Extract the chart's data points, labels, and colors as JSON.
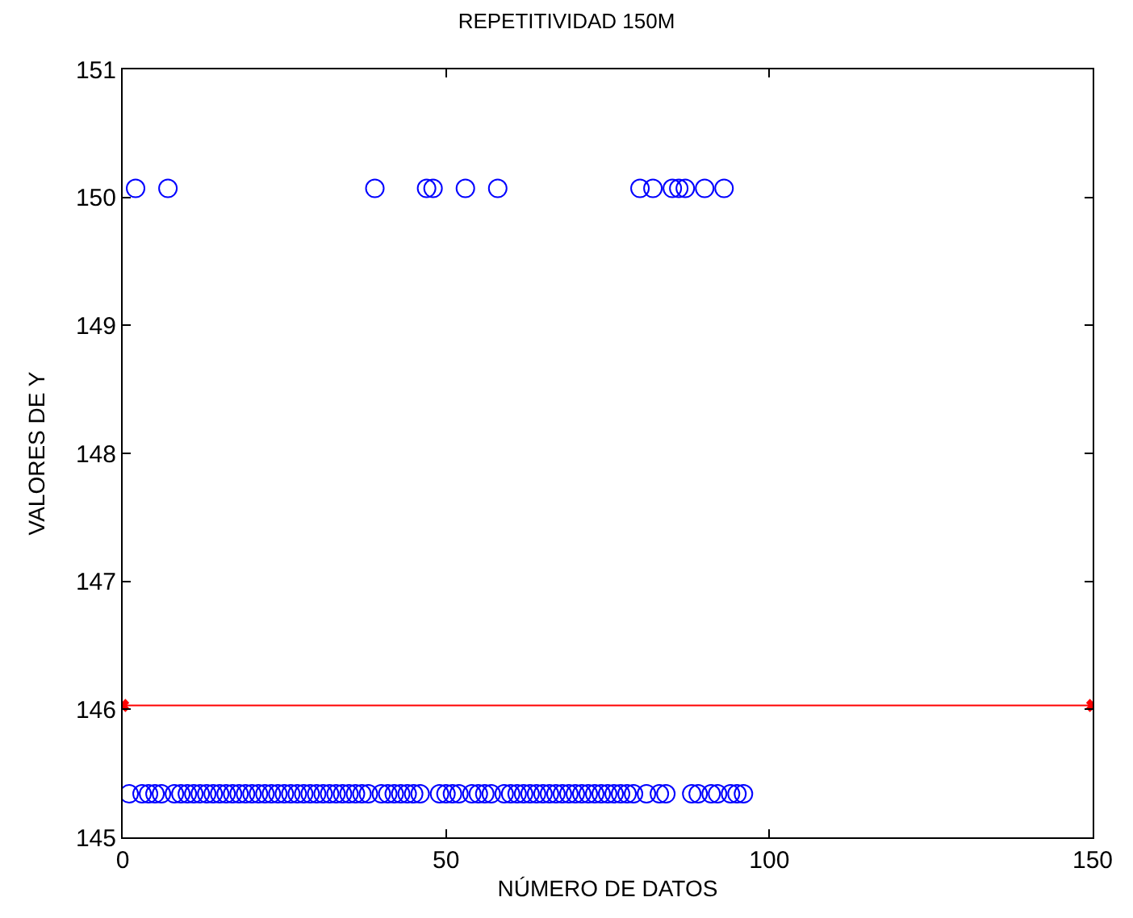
{
  "chart_data": {
    "type": "scatter",
    "title": "REPETITIVIDAD 150M",
    "xlabel": "NÚMERO DE DATOS",
    "ylabel": "VALORES DE Y",
    "xlim": [
      0,
      150
    ],
    "xticks": [
      0,
      50,
      100,
      150
    ],
    "ylim": [
      145,
      151
    ],
    "yticks": [
      145,
      146,
      147,
      148,
      149,
      150,
      151
    ],
    "grid": false,
    "series": [
      {
        "marker": "circle",
        "color": "#0000ff",
        "x": [
          1,
          2,
          3,
          4,
          5,
          6,
          7,
          8,
          9,
          10,
          11,
          12,
          13,
          14,
          15,
          16,
          17,
          18,
          19,
          20,
          21,
          22,
          23,
          24,
          25,
          26,
          27,
          28,
          29,
          30,
          31,
          32,
          33,
          34,
          35,
          36,
          37,
          38,
          39,
          40,
          41,
          42,
          43,
          44,
          45,
          46,
          47,
          48,
          49,
          50,
          51,
          52,
          53,
          54,
          55,
          56,
          57,
          58,
          59,
          60,
          61,
          62,
          63,
          64,
          65,
          66,
          67,
          68,
          69,
          70,
          71,
          72,
          73,
          74,
          75,
          76,
          77,
          78,
          79,
          80,
          81,
          82,
          83,
          84,
          85,
          86,
          87,
          88,
          89,
          90,
          91,
          92,
          93,
          94,
          95,
          96
        ],
        "values": [
          145.34,
          150.07,
          145.34,
          145.34,
          145.34,
          145.34,
          150.07,
          145.34,
          145.34,
          145.34,
          145.34,
          145.34,
          145.34,
          145.34,
          145.34,
          145.34,
          145.34,
          145.34,
          145.34,
          145.34,
          145.34,
          145.34,
          145.34,
          145.34,
          145.34,
          145.34,
          145.34,
          145.34,
          145.34,
          145.34,
          145.34,
          145.34,
          145.34,
          145.34,
          145.34,
          145.34,
          145.34,
          145.34,
          150.07,
          145.34,
          145.34,
          145.34,
          145.34,
          145.34,
          145.34,
          145.34,
          150.07,
          150.07,
          145.34,
          145.34,
          145.34,
          145.34,
          150.07,
          145.34,
          145.34,
          145.34,
          145.34,
          150.07,
          145.34,
          145.34,
          145.34,
          145.34,
          145.34,
          145.34,
          145.34,
          145.34,
          145.34,
          145.34,
          145.34,
          145.34,
          145.34,
          145.34,
          145.34,
          145.34,
          145.34,
          145.34,
          145.34,
          145.34,
          145.34,
          150.07,
          145.34,
          150.07,
          145.34,
          145.34,
          150.07,
          150.07,
          150.07,
          145.34,
          145.34,
          150.07,
          145.34,
          145.34,
          150.07,
          145.34,
          145.34,
          145.34
        ]
      },
      {
        "type": "line",
        "marker": "cross",
        "line_style": "solid",
        "color": "#ff0000",
        "x": [
          0,
          150
        ],
        "values": [
          146.03,
          146.03
        ]
      }
    ]
  }
}
